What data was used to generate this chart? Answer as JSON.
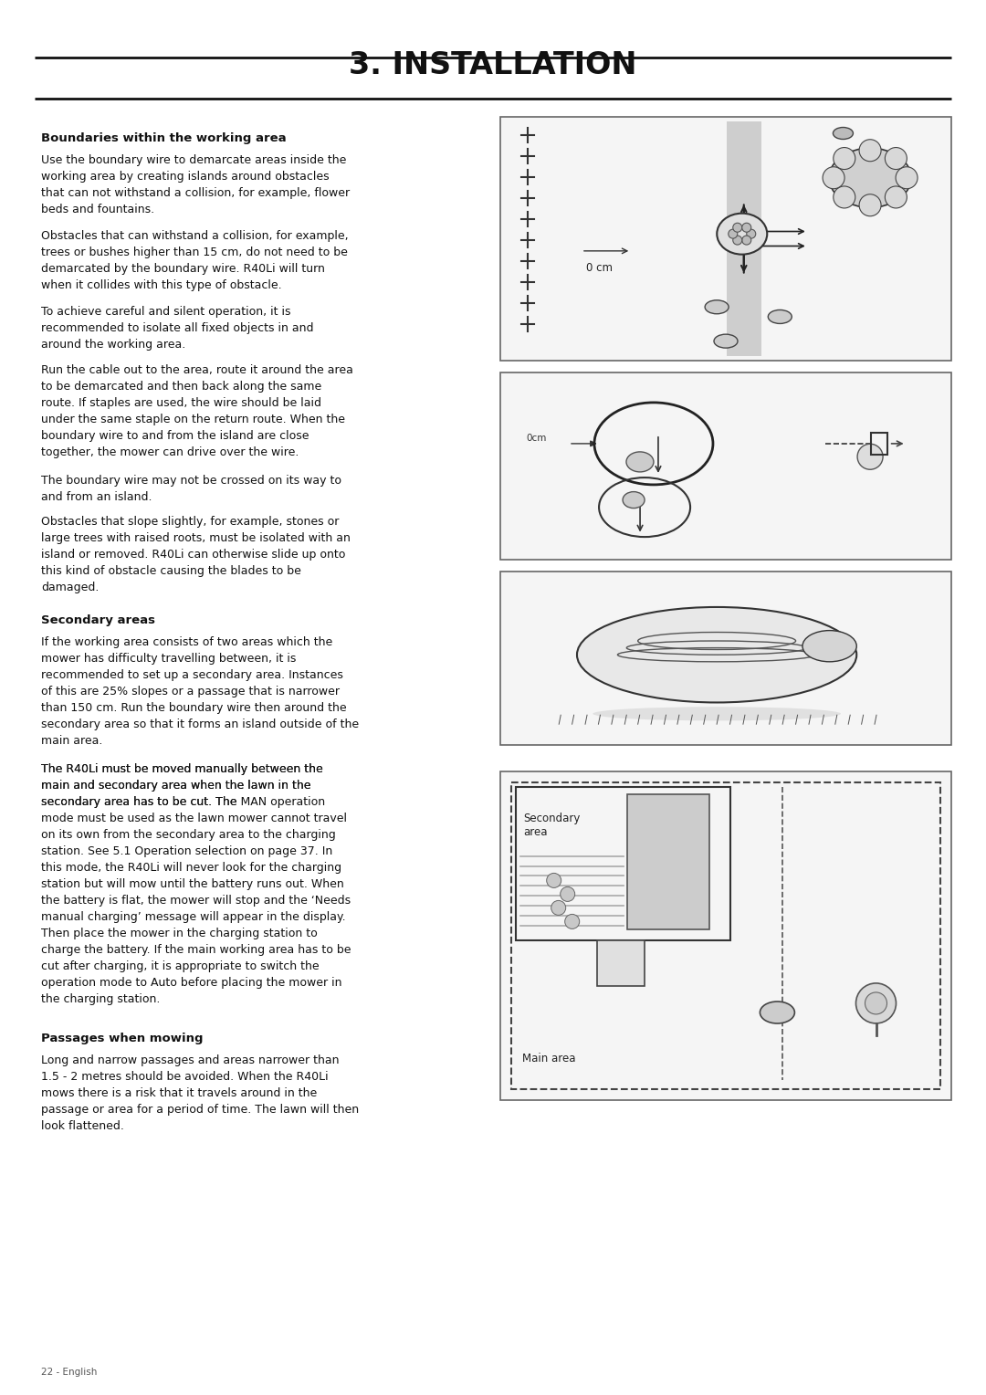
{
  "page_width": 10.8,
  "page_height": 15.28,
  "dpi": 100,
  "bg_color": "#ffffff",
  "title": "3. INSTALLATION",
  "title_fontsize": 24,
  "title_color": "#111111",
  "header_line_color": "#222222",
  "body_text_color": "#111111",
  "body_fontsize": 9.0,
  "heading_fontsize": 9.5,
  "section1_heading": "Boundaries within the working area",
  "section1_para1": "Use the boundary wire to demarcate areas inside the\nworking area by creating islands around obstacles\nthat can not withstand a collision, for example, flower\nbeds and fountains.",
  "section1_para2": "Obstacles that can withstand a collision, for example,\ntrees or bushes higher than 15 cm, do not need to be\ndemarcated by the boundary wire. R40Li will turn\nwhen it collides with this type of obstacle.",
  "section1_para3": "To achieve careful and silent operation, it is\nrecommended to isolate all fixed objects in and\naround the working area.",
  "section1_para4": "Run the cable out to the area, route it around the area\nto be demarcated and then back along the same\nroute. If staples are used, the wire should be laid\nunder the same staple on the return route. When the\nboundary wire to and from the island are close\ntogether, the mower can drive over the wire.",
  "section1_para5": "The boundary wire may not be crossed on its way to\nand from an island.",
  "section1_para6": "Obstacles that slope slightly, for example, stones or\nlarge trees with raised roots, must be isolated with an\nisland or removed. R40Li can otherwise slide up onto\nthis kind of obstacle causing the blades to be\ndamaged.",
  "section2_heading": "Secondary areas",
  "section2_para1": "If the working area consists of two areas which the\nmower has difficulty travelling between, it is\nrecommended to set up a secondary area. Instances\nof this are 25% slopes or a passage that is narrower\nthan 150 cm. Run the boundary wire then around the\nsecondary area so that it forms an island outside of the\nmain area.",
  "section2_para2a": "The R40Li must be moved manually between the\nmain and secondary area when the lawn in the\nsecondary area has to be cut. The ",
  "section2_para2b": "MAN",
  "section2_para2c": " operation\nmode must be used as the lawn mower cannot travel\non its own from the secondary area to the charging\nstation. See ",
  "section2_para2d": "5.1 Operation selection",
  "section2_para2e": " on page 37. In\nthis mode, the R40Li will never look for the charging\nstation but will mow until the battery runs out. When\nthe battery is flat, the mower will stop and the ‘",
  "section2_para2f": "Needs\nmanual charging",
  "section2_para2g": "’ message will appear in the display.\nThen place the mower in the charging station to\ncharge the battery. If the main working area has to be\ncut after charging, it is appropriate to switch the\noperation mode to Auto before placing the mower in\nthe charging station.",
  "section3_heading": "Passages when mowing",
  "section3_para1": "Long and narrow passages and areas narrower than\n1.5 - 2 metres should be avoided. When the R40Li\nmows there is a risk that it travels around in the\npassage or area for a period of time. The lawn will then\nlook flattened.",
  "footer_text": "22 - English",
  "label_0cm_d1": "0 cm",
  "label_0cm_d2": "0cm",
  "label_secondary": "Secondary\narea",
  "label_main": "Main area"
}
